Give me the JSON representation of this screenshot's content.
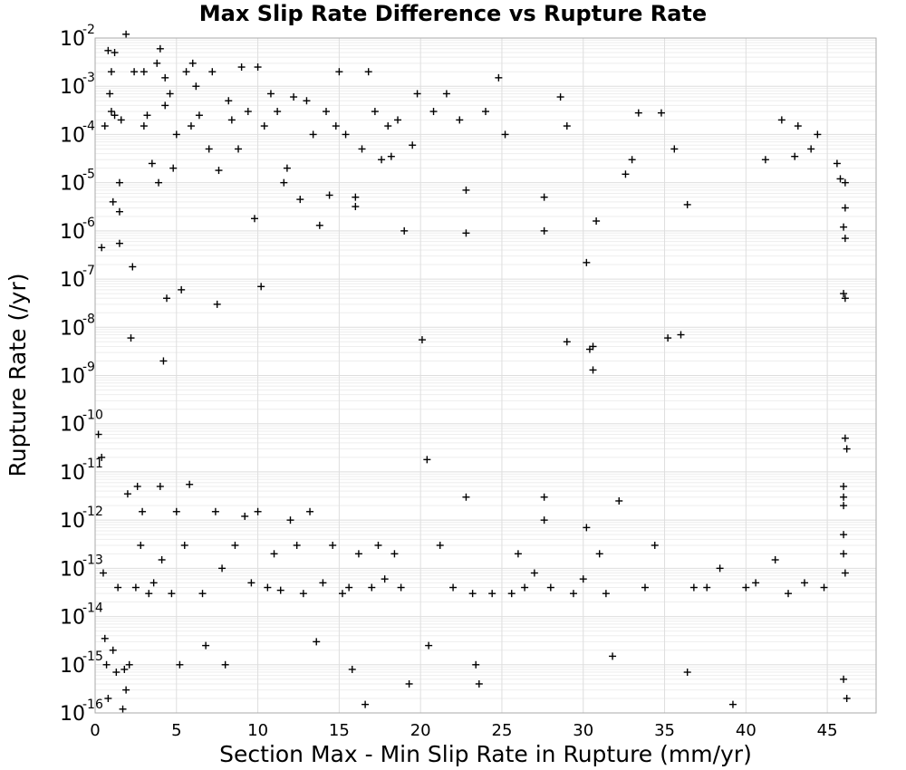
{
  "chart_data": {
    "type": "scatter",
    "title": "Max Slip Rate Difference vs Rupture Rate",
    "xlabel": "Section Max - Min Slip Rate in Rupture (mm/yr)",
    "ylabel": "Rupture Rate (/yr)",
    "xlim": [
      0,
      48
    ],
    "ylim": [
      1e-16,
      0.01
    ],
    "yscale": "log",
    "grid": true,
    "marker": "+",
    "x_ticks": [
      "0",
      "5",
      "10",
      "15",
      "20",
      "25",
      "30",
      "35",
      "40",
      "45"
    ],
    "y_ticks": [
      {
        "base": "10",
        "exp": "-2"
      },
      {
        "base": "10",
        "exp": "-3"
      },
      {
        "base": "10",
        "exp": "-4"
      },
      {
        "base": "10",
        "exp": "-5"
      },
      {
        "base": "10",
        "exp": "-6"
      },
      {
        "base": "10",
        "exp": "-7"
      },
      {
        "base": "10",
        "exp": "-8"
      },
      {
        "base": "10",
        "exp": "-9"
      },
      {
        "base": "10",
        "exp": "-10"
      },
      {
        "base": "10",
        "exp": "-11"
      },
      {
        "base": "10",
        "exp": "-12"
      },
      {
        "base": "10",
        "exp": "-13"
      },
      {
        "base": "10",
        "exp": "-14"
      },
      {
        "base": "10",
        "exp": "-15"
      },
      {
        "base": "10",
        "exp": "-16"
      }
    ],
    "series": [
      {
        "points": [
          [
            0.2,
            6e-11
          ],
          [
            0.4,
            2e-11
          ],
          [
            0.4,
            4.5e-07
          ],
          [
            0.5,
            8e-14
          ],
          [
            0.6,
            3.5e-15
          ],
          [
            0.6,
            0.00015
          ],
          [
            0.7,
            1e-15
          ],
          [
            0.8,
            0.0055
          ],
          [
            0.8,
            2e-16
          ],
          [
            0.9,
            0.0007
          ],
          [
            1.0,
            0.002
          ],
          [
            1.0,
            0.0003
          ],
          [
            1.1,
            2e-15
          ],
          [
            1.1,
            4e-06
          ],
          [
            1.2,
            0.005
          ],
          [
            1.2,
            0.00025
          ],
          [
            1.3,
            7e-16
          ],
          [
            1.4,
            4e-14
          ],
          [
            1.5,
            5.5e-07
          ],
          [
            1.5,
            2.5e-06
          ],
          [
            1.5,
            1e-05
          ],
          [
            1.6,
            0.0002
          ],
          [
            1.7,
            1.2e-16
          ],
          [
            1.8,
            8e-16
          ],
          [
            1.9,
            3e-16
          ],
          [
            1.9,
            0.012
          ],
          [
            2.0,
            3.5e-12
          ],
          [
            2.1,
            1e-15
          ],
          [
            2.2,
            6e-09
          ],
          [
            2.3,
            1.8e-07
          ],
          [
            2.4,
            0.002
          ],
          [
            2.5,
            4e-14
          ],
          [
            2.6,
            5e-12
          ],
          [
            2.8,
            3e-13
          ],
          [
            2.9,
            1.5e-12
          ],
          [
            3.0,
            0.002
          ],
          [
            3.0,
            0.00015
          ],
          [
            3.2,
            0.00025
          ],
          [
            3.3,
            3e-14
          ],
          [
            3.5,
            2.5e-05
          ],
          [
            3.6,
            5e-14
          ],
          [
            3.8,
            0.003
          ],
          [
            3.9,
            1e-05
          ],
          [
            4.0,
            5e-12
          ],
          [
            4.0,
            0.006
          ],
          [
            4.1,
            1.5e-13
          ],
          [
            4.2,
            2e-09
          ],
          [
            4.3,
            0.0015
          ],
          [
            4.3,
            0.0004
          ],
          [
            4.4,
            4e-08
          ],
          [
            4.6,
            0.0007
          ],
          [
            4.7,
            3e-14
          ],
          [
            4.8,
            2e-05
          ],
          [
            5.0,
            1.5e-12
          ],
          [
            5.0,
            0.0001
          ],
          [
            5.2,
            1e-15
          ],
          [
            5.3,
            6e-08
          ],
          [
            5.5,
            3e-13
          ],
          [
            5.6,
            0.002
          ],
          [
            5.8,
            5.5e-12
          ],
          [
            5.9,
            0.00015
          ],
          [
            6.0,
            0.003
          ],
          [
            6.2,
            0.001
          ],
          [
            6.4,
            0.00025
          ],
          [
            6.6,
            3e-14
          ],
          [
            6.8,
            2.5e-15
          ],
          [
            7.0,
            5e-05
          ],
          [
            7.2,
            0.002
          ],
          [
            7.4,
            1.5e-12
          ],
          [
            7.5,
            3e-08
          ],
          [
            7.6,
            1.8e-05
          ],
          [
            7.8,
            1e-13
          ],
          [
            8.0,
            1e-15
          ],
          [
            8.2,
            0.0005
          ],
          [
            8.4,
            0.0002
          ],
          [
            8.6,
            3e-13
          ],
          [
            8.8,
            5e-05
          ],
          [
            9.0,
            0.0025
          ],
          [
            9.2,
            1.2e-12
          ],
          [
            9.4,
            0.0003
          ],
          [
            9.6,
            5e-14
          ],
          [
            9.8,
            1.8e-06
          ],
          [
            10.0,
            0.0025
          ],
          [
            10.0,
            1.5e-12
          ],
          [
            10.2,
            7e-08
          ],
          [
            10.4,
            0.00015
          ],
          [
            10.6,
            4e-14
          ],
          [
            10.8,
            0.0007
          ],
          [
            11.0,
            2e-13
          ],
          [
            11.2,
            0.0003
          ],
          [
            11.4,
            3.5e-14
          ],
          [
            11.6,
            1e-05
          ],
          [
            11.8,
            2e-05
          ],
          [
            12.0,
            1e-12
          ],
          [
            12.2,
            0.0006
          ],
          [
            12.4,
            3e-13
          ],
          [
            12.6,
            4.5e-06
          ],
          [
            12.8,
            3e-14
          ],
          [
            13.0,
            0.0005
          ],
          [
            13.2,
            1.5e-12
          ],
          [
            13.4,
            0.0001
          ],
          [
            13.6,
            3e-15
          ],
          [
            13.8,
            1.3e-06
          ],
          [
            14.0,
            5e-14
          ],
          [
            14.2,
            0.0003
          ],
          [
            14.4,
            5.5e-06
          ],
          [
            14.6,
            3e-13
          ],
          [
            14.8,
            0.00015
          ],
          [
            15.0,
            0.002
          ],
          [
            15.2,
            3e-14
          ],
          [
            15.4,
            0.0001
          ],
          [
            15.6,
            4e-14
          ],
          [
            15.8,
            8e-16
          ],
          [
            16.0,
            3.2e-06
          ],
          [
            16.0,
            5e-06
          ],
          [
            16.2,
            2e-13
          ],
          [
            16.4,
            5e-05
          ],
          [
            16.6,
            1.5e-16
          ],
          [
            16.8,
            0.002
          ],
          [
            17.0,
            4e-14
          ],
          [
            17.2,
            0.0003
          ],
          [
            17.4,
            3e-13
          ],
          [
            17.6,
            3e-05
          ],
          [
            17.8,
            6e-14
          ],
          [
            18.0,
            0.00015
          ],
          [
            18.2,
            3.5e-05
          ],
          [
            18.4,
            2e-13
          ],
          [
            18.6,
            0.0002
          ],
          [
            18.8,
            4e-14
          ],
          [
            19.0,
            1e-06
          ],
          [
            19.3,
            4e-16
          ],
          [
            19.5,
            6e-05
          ],
          [
            19.8,
            0.0007
          ],
          [
            20.1,
            5.5e-09
          ],
          [
            20.4,
            1.8e-11
          ],
          [
            20.5,
            2.5e-15
          ],
          [
            20.8,
            0.0003
          ],
          [
            21.2,
            3e-13
          ],
          [
            21.6,
            0.0007
          ],
          [
            22.0,
            4e-14
          ],
          [
            22.4,
            0.0002
          ],
          [
            22.8,
            3e-12
          ],
          [
            22.8,
            7e-06
          ],
          [
            22.8,
            9e-07
          ],
          [
            23.2,
            3e-14
          ],
          [
            23.4,
            1e-15
          ],
          [
            23.6,
            4e-16
          ],
          [
            24.0,
            0.0003
          ],
          [
            24.4,
            3e-14
          ],
          [
            24.8,
            0.0015
          ],
          [
            25.2,
            0.0001
          ],
          [
            25.6,
            3e-14
          ],
          [
            26.0,
            2e-13
          ],
          [
            26.4,
            4e-14
          ],
          [
            27.0,
            8e-14
          ],
          [
            27.6,
            3e-12
          ],
          [
            27.6,
            1e-12
          ],
          [
            27.6,
            5e-06
          ],
          [
            27.6,
            1e-06
          ],
          [
            28.0,
            4e-14
          ],
          [
            28.6,
            0.0006
          ],
          [
            29.0,
            5e-09
          ],
          [
            29.0,
            0.00015
          ],
          [
            29.4,
            3e-14
          ],
          [
            30.0,
            6e-14
          ],
          [
            30.2,
            7e-13
          ],
          [
            30.2,
            2.2e-07
          ],
          [
            30.4,
            3.5e-09
          ],
          [
            30.6,
            1.3e-09
          ],
          [
            30.6,
            4e-09
          ],
          [
            30.8,
            1.6e-06
          ],
          [
            31.0,
            2e-13
          ],
          [
            31.4,
            3e-14
          ],
          [
            31.8,
            1.5e-15
          ],
          [
            32.2,
            2.5e-12
          ],
          [
            32.6,
            1.5e-05
          ],
          [
            33.0,
            3e-05
          ],
          [
            33.4,
            0.00028
          ],
          [
            33.8,
            4e-14
          ],
          [
            34.4,
            3e-13
          ],
          [
            34.8,
            0.00028
          ],
          [
            35.2,
            6e-09
          ],
          [
            35.6,
            5e-05
          ],
          [
            36.0,
            7e-09
          ],
          [
            36.4,
            3.5e-06
          ],
          [
            36.4,
            7e-16
          ],
          [
            36.8,
            4e-14
          ],
          [
            37.6,
            4e-14
          ],
          [
            38.4,
            1e-13
          ],
          [
            39.2,
            1.5e-16
          ],
          [
            40.0,
            4e-14
          ],
          [
            40.6,
            5e-14
          ],
          [
            41.2,
            3e-05
          ],
          [
            41.8,
            1.5e-13
          ],
          [
            42.2,
            0.0002
          ],
          [
            42.6,
            3e-14
          ],
          [
            43.0,
            3.5e-05
          ],
          [
            43.2,
            0.00015
          ],
          [
            43.6,
            5e-14
          ],
          [
            44.0,
            5e-05
          ],
          [
            44.4,
            0.0001
          ],
          [
            44.8,
            4e-14
          ],
          [
            45.6,
            2.5e-05
          ],
          [
            45.8,
            1.2e-05
          ],
          [
            46.0,
            1.2e-06
          ],
          [
            46.0,
            5e-08
          ],
          [
            46.0,
            5e-12
          ],
          [
            46.0,
            3e-12
          ],
          [
            46.0,
            2e-12
          ],
          [
            46.0,
            5e-13
          ],
          [
            46.0,
            2e-13
          ],
          [
            46.1,
            3e-06
          ],
          [
            46.1,
            7e-07
          ],
          [
            46.1,
            4e-08
          ],
          [
            46.1,
            1e-05
          ],
          [
            46.1,
            5e-11
          ],
          [
            46.1,
            8e-14
          ],
          [
            46.2,
            3e-11
          ],
          [
            46.2,
            2e-16
          ],
          [
            46.0,
            5e-16
          ]
        ]
      }
    ]
  }
}
